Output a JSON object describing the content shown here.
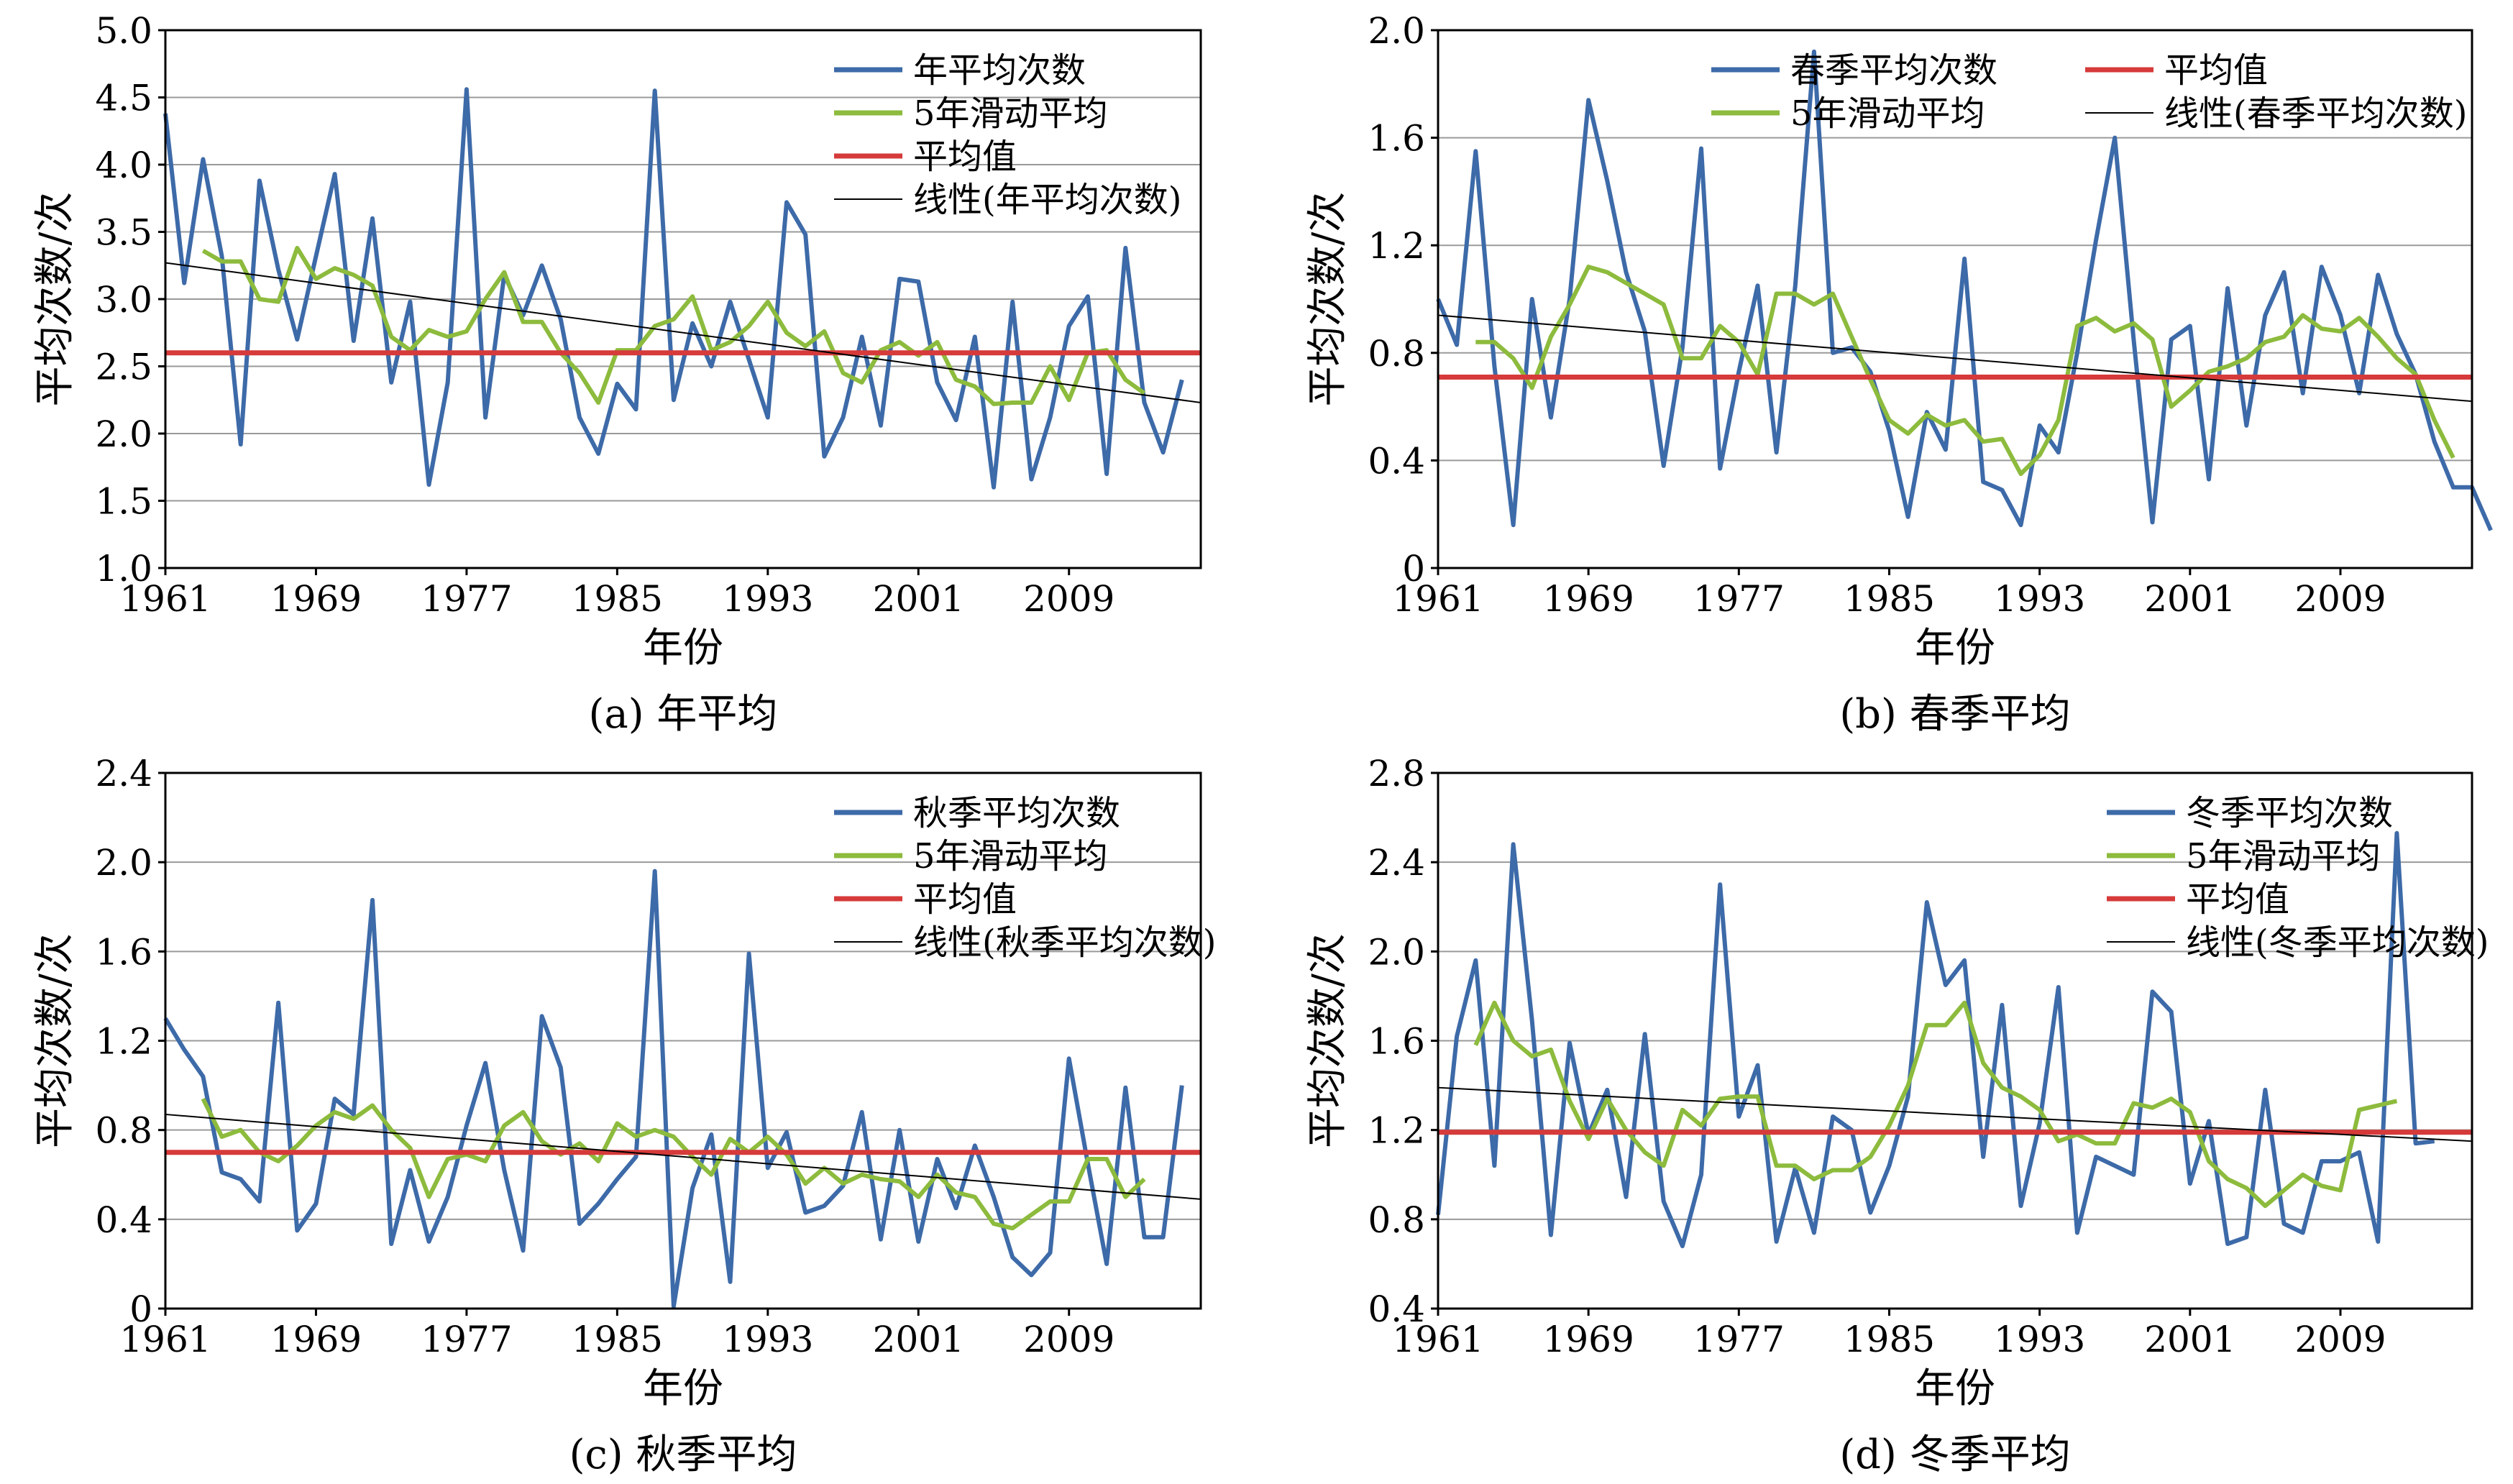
{
  "chart_data": [
    {
      "type": "line",
      "caption": "(a) 年平均",
      "xlabel": "年份",
      "ylabel": "平均次数/次",
      "xlim": [
        1961,
        2016
      ],
      "ylim": [
        1.0,
        5.0
      ],
      "yticks": [
        "1.0",
        "1.5",
        "2.0",
        "2.5",
        "3.0",
        "3.5",
        "4.0",
        "4.5",
        "5.0"
      ],
      "xticks": [
        "1961",
        "1969",
        "1977",
        "1985",
        "1993",
        "2001",
        "2009"
      ],
      "grid": true,
      "legend": {
        "position": "top-right",
        "layout": "column",
        "entries": [
          "年平均次数",
          "5年滑动平均",
          "平均值",
          "线性(年平均次数)"
        ]
      },
      "colors": {
        "raw": "#3d6aa8",
        "moving": "#8dbb3d",
        "mean": "#d63a3a",
        "trend": "#000000"
      },
      "x_start": 1961,
      "series": [
        {
          "name": "年平均次数",
          "role": "raw",
          "values": [
            4.38,
            3.12,
            4.04,
            3.32,
            1.92,
            3.88,
            3.22,
            2.7,
            3.32,
            3.93,
            2.69,
            3.6,
            2.38,
            2.98,
            1.62,
            2.38,
            4.56,
            2.12,
            3.18,
            2.88,
            3.25,
            2.85,
            2.12,
            1.85,
            2.37,
            2.18,
            4.55,
            2.25,
            2.82,
            2.5,
            2.98,
            2.55,
            2.12,
            3.72,
            3.48,
            1.83,
            2.12,
            2.72,
            2.06,
            3.15,
            3.13,
            2.38,
            2.1,
            2.72,
            1.6,
            2.98,
            1.66,
            2.12,
            2.8,
            3.02,
            1.7,
            3.38,
            2.23,
            1.86,
            2.4
          ]
        },
        {
          "name": "5年滑动平均",
          "role": "moving",
          "values": [
            null,
            null,
            3.36,
            3.28,
            3.28,
            3.0,
            2.98,
            3.38,
            3.15,
            3.23,
            3.18,
            3.1,
            2.72,
            2.62,
            2.77,
            2.72,
            2.76,
            3.0,
            3.2,
            2.83,
            2.83,
            2.6,
            2.45,
            2.23,
            2.62,
            2.62,
            2.8,
            2.85,
            3.02,
            2.62,
            2.68,
            2.8,
            2.98,
            2.75,
            2.65,
            2.76,
            2.45,
            2.38,
            2.62,
            2.68,
            2.58,
            2.68,
            2.4,
            2.35,
            2.22,
            2.23,
            2.23,
            2.5,
            2.25,
            2.6,
            2.62,
            2.4,
            2.3,
            null,
            null
          ]
        },
        {
          "name": "平均值",
          "role": "mean",
          "value": 2.6
        },
        {
          "name": "线性(年平均次数)",
          "role": "trend",
          "from": 3.27,
          "to": 2.23
        }
      ]
    },
    {
      "type": "line",
      "caption": "(b) 春季平均",
      "xlabel": "年份",
      "ylabel": "平均次数/次",
      "xlim": [
        1961,
        2016
      ],
      "ylim": [
        0,
        2.0
      ],
      "yticks": [
        "0",
        "0.4",
        "0.8",
        "1.2",
        "1.6",
        "2.0"
      ],
      "xticks": [
        "1961",
        "1969",
        "1977",
        "1985",
        "1993",
        "2001",
        "2009"
      ],
      "grid": true,
      "legend": {
        "position": "top",
        "layout": "two-column",
        "entries": [
          "春季平均次数",
          "5年滑动平均",
          "平均值",
          "线性(春季平均次数)"
        ]
      },
      "colors": {
        "raw": "#3d6aa8",
        "moving": "#8dbb3d",
        "mean": "#d63a3a",
        "trend": "#000000"
      },
      "x_start": 1961,
      "series": [
        {
          "name": "春季平均次数",
          "role": "raw",
          "values": [
            1.0,
            0.83,
            1.55,
            0.75,
            0.16,
            1.0,
            0.56,
            1.0,
            1.74,
            1.44,
            1.1,
            0.88,
            0.38,
            0.82,
            1.56,
            0.37,
            0.73,
            1.05,
            0.43,
            1.05,
            1.92,
            0.8,
            0.82,
            0.73,
            0.51,
            0.19,
            0.58,
            0.44,
            1.15,
            0.32,
            0.29,
            0.16,
            0.53,
            0.43,
            0.8,
            1.22,
            1.6,
            0.85,
            0.17,
            0.85,
            0.9,
            0.33,
            1.04,
            0.53,
            0.94,
            1.1,
            0.65,
            1.12,
            0.94,
            0.65,
            1.09,
            0.87,
            0.72,
            0.47,
            0.3,
            0.3,
            0.14
          ]
        },
        {
          "name": "5年滑动平均",
          "role": "moving",
          "values": [
            null,
            null,
            0.84,
            0.84,
            0.78,
            0.67,
            0.86,
            0.98,
            1.12,
            1.1,
            1.06,
            1.02,
            0.98,
            0.78,
            0.78,
            0.9,
            0.84,
            0.72,
            1.02,
            1.02,
            0.98,
            1.02,
            0.86,
            0.7,
            0.55,
            0.5,
            0.57,
            0.53,
            0.55,
            0.47,
            0.48,
            0.35,
            0.42,
            0.55,
            0.9,
            0.93,
            0.88,
            0.91,
            0.85,
            0.6,
            0.66,
            0.73,
            0.75,
            0.78,
            0.84,
            0.86,
            0.94,
            0.89,
            0.88,
            0.93,
            0.86,
            0.78,
            0.72,
            0.55,
            0.41,
            null,
            null
          ]
        },
        {
          "name": "平均值",
          "role": "mean",
          "value": 0.71
        },
        {
          "name": "线性(春季平均次数)",
          "role": "trend",
          "from": 0.94,
          "to": 0.62
        }
      ]
    },
    {
      "type": "line",
      "caption": "(c) 秋季平均",
      "xlabel": "年份",
      "ylabel": "平均次数/次",
      "xlim": [
        1961,
        2016
      ],
      "ylim": [
        0,
        2.4
      ],
      "yticks": [
        "0",
        "0.4",
        "0.8",
        "1.2",
        "1.6",
        "2.0",
        "2.4"
      ],
      "xticks": [
        "1961",
        "1969",
        "1977",
        "1985",
        "1993",
        "2001",
        "2009"
      ],
      "grid": true,
      "legend": {
        "position": "top-right",
        "layout": "column",
        "entries": [
          "秋季平均次数",
          "5年滑动平均",
          "平均值",
          "线性(秋季平均次数)"
        ]
      },
      "colors": {
        "raw": "#3d6aa8",
        "moving": "#8dbb3d",
        "mean": "#d63a3a",
        "trend": "#000000"
      },
      "x_start": 1961,
      "series": [
        {
          "name": "秋季平均次数",
          "role": "raw",
          "values": [
            1.3,
            1.16,
            1.04,
            0.61,
            0.58,
            0.48,
            1.37,
            0.35,
            0.47,
            0.94,
            0.87,
            1.83,
            0.29,
            0.62,
            0.3,
            0.5,
            0.82,
            1.1,
            0.62,
            0.26,
            1.31,
            1.08,
            0.38,
            0.47,
            0.58,
            0.68,
            1.96,
            0.01,
            0.54,
            0.78,
            0.12,
            1.59,
            0.63,
            0.79,
            0.43,
            0.46,
            0.55,
            0.88,
            0.31,
            0.8,
            0.3,
            0.67,
            0.45,
            0.73,
            0.5,
            0.23,
            0.15,
            0.25,
            1.12,
            0.65,
            0.2,
            0.99,
            0.32,
            0.32,
            1.0
          ]
        },
        {
          "name": "5年滑动平均",
          "role": "moving",
          "values": [
            null,
            null,
            0.94,
            0.77,
            0.8,
            0.7,
            0.66,
            0.73,
            0.82,
            0.88,
            0.85,
            0.91,
            0.8,
            0.72,
            0.5,
            0.67,
            0.69,
            0.66,
            0.82,
            0.88,
            0.75,
            0.69,
            0.74,
            0.66,
            0.83,
            0.77,
            0.8,
            0.77,
            0.68,
            0.6,
            0.76,
            0.7,
            0.77,
            0.69,
            0.56,
            0.63,
            0.56,
            0.6,
            0.58,
            0.57,
            0.5,
            0.6,
            0.52,
            0.5,
            0.38,
            0.36,
            0.42,
            0.48,
            0.48,
            0.67,
            0.67,
            0.5,
            0.58,
            null,
            null
          ]
        },
        {
          "name": "平均值",
          "role": "mean",
          "value": 0.7
        },
        {
          "name": "线性(秋季平均次数)",
          "role": "trend",
          "from": 0.87,
          "to": 0.49
        }
      ]
    },
    {
      "type": "line",
      "caption": "(d) 冬季平均",
      "xlabel": "年份",
      "ylabel": "平均次数/次",
      "xlim": [
        1961,
        2016
      ],
      "ylim": [
        0.4,
        2.8
      ],
      "yticks": [
        "0.4",
        "0.8",
        "1.2",
        "1.6",
        "2.0",
        "2.4",
        "2.8"
      ],
      "xticks": [
        "1961",
        "1969",
        "1977",
        "1985",
        "1993",
        "2001",
        "2009"
      ],
      "grid": true,
      "legend": {
        "position": "top-right",
        "layout": "column",
        "entries": [
          "冬季平均次数",
          "5年滑动平均",
          "平均值",
          "线性(冬季平均次数)"
        ]
      },
      "colors": {
        "raw": "#3d6aa8",
        "moving": "#8dbb3d",
        "mean": "#d63a3a",
        "trend": "#000000"
      },
      "x_start": 1961,
      "series": [
        {
          "name": "冬季平均次数",
          "role": "raw",
          "values": [
            0.82,
            1.62,
            1.96,
            1.04,
            2.48,
            1.69,
            0.73,
            1.59,
            1.18,
            1.38,
            0.9,
            1.63,
            0.88,
            0.68,
            1.0,
            2.3,
            1.26,
            1.49,
            0.7,
            1.03,
            0.74,
            1.26,
            1.2,
            0.83,
            1.04,
            1.35,
            2.22,
            1.85,
            1.96,
            1.08,
            1.76,
            0.86,
            1.23,
            1.84,
            0.74,
            1.08,
            1.04,
            1.0,
            1.82,
            1.73,
            0.96,
            1.24,
            0.69,
            0.72,
            1.38,
            0.78,
            0.74,
            1.06,
            1.06,
            1.1,
            0.7,
            2.53,
            1.14,
            1.15
          ]
        },
        {
          "name": "5年滑动平均",
          "role": "moving",
          "values": [
            null,
            null,
            1.58,
            1.77,
            1.6,
            1.53,
            1.56,
            1.33,
            1.16,
            1.34,
            1.2,
            1.1,
            1.04,
            1.29,
            1.22,
            1.34,
            1.35,
            1.35,
            1.04,
            1.04,
            0.98,
            1.02,
            1.02,
            1.08,
            1.22,
            1.4,
            1.67,
            1.67,
            1.77,
            1.5,
            1.39,
            1.35,
            1.29,
            1.15,
            1.18,
            1.14,
            1.14,
            1.32,
            1.3,
            1.34,
            1.28,
            1.06,
            0.98,
            0.94,
            0.86,
            0.93,
            1.0,
            0.95,
            0.93,
            1.29,
            1.31,
            1.33,
            null,
            null
          ]
        },
        {
          "name": "平均值",
          "role": "mean",
          "value": 1.19
        },
        {
          "name": "线性(冬季平均次数)",
          "role": "trend",
          "from": 1.39,
          "to": 1.15
        }
      ]
    }
  ]
}
